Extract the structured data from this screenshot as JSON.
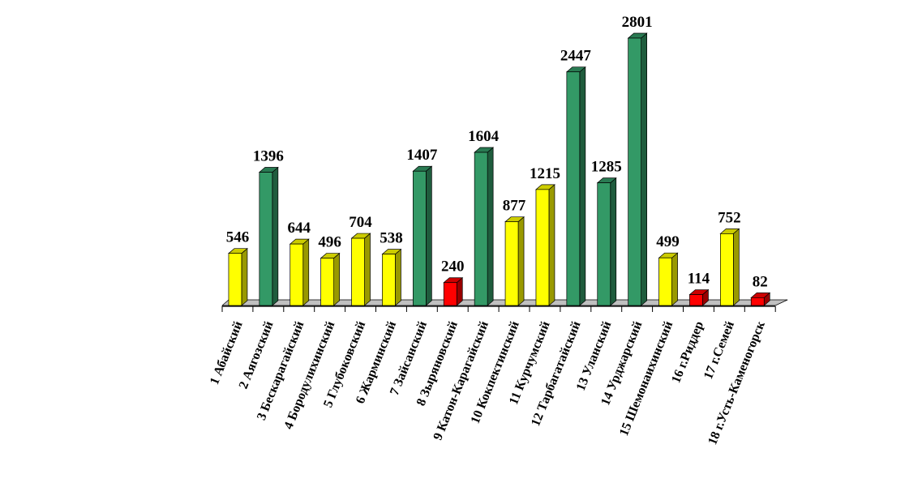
{
  "chart_data": {
    "type": "bar",
    "title": "",
    "xlabel": "",
    "ylabel": "",
    "ylim": [
      0,
      2801
    ],
    "grid": false,
    "legend": "none",
    "categories": [
      "1 Абайский",
      "2 Аягозский",
      "3 Бескарагайский",
      "4 Бородулихинский",
      "5 Глубоковский",
      "6 Жарминский",
      "7 Зайсанский",
      "8 Зыряновский",
      "9 Катон-Карагайский",
      "10 Кокпектинский",
      "11 Курчумский",
      "12 Тарбагатайский",
      "13 Уланский",
      "14 Урджарский",
      "15 Шемонаихинский",
      "16 г.Риддер",
      "17 г.Семей",
      "18 г.Усть-Каменогорск"
    ],
    "values": [
      546,
      1396,
      644,
      496,
      704,
      538,
      1407,
      240,
      1604,
      877,
      1215,
      2447,
      1285,
      2801,
      499,
      114,
      752,
      82
    ],
    "bar_colors": [
      "yellow",
      "green",
      "yellow",
      "yellow",
      "yellow",
      "yellow",
      "green",
      "red",
      "green",
      "yellow",
      "yellow",
      "green",
      "green",
      "green",
      "yellow",
      "red",
      "yellow",
      "red"
    ],
    "palette": {
      "yellow": "#ffff00",
      "green": "#339966",
      "red": "#ff0000",
      "floor": "#c0c0c0"
    }
  }
}
